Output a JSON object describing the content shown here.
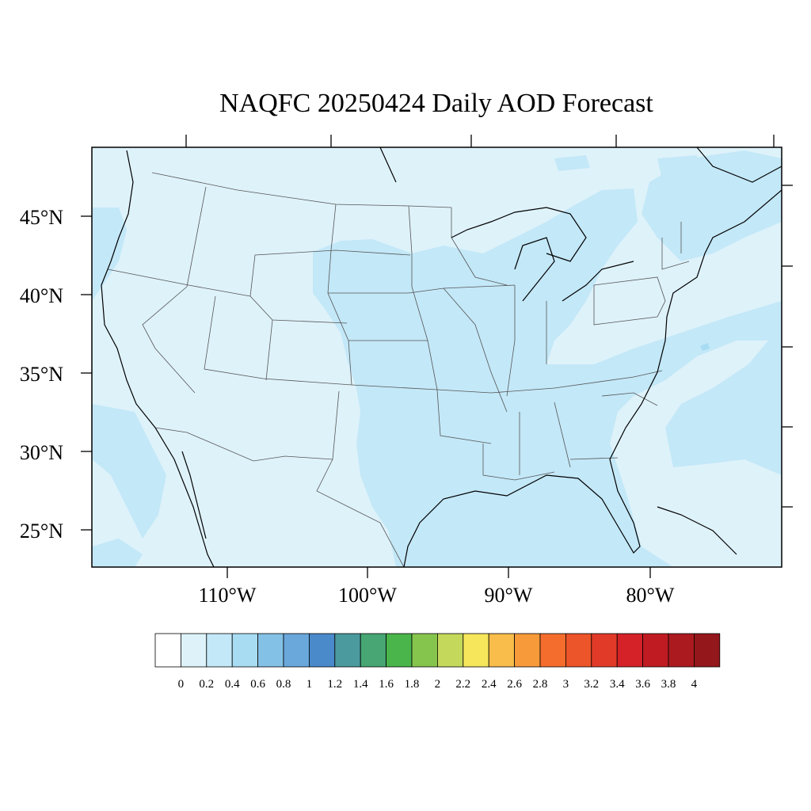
{
  "title": "NAQFC 20250424 Daily AOD Forecast",
  "colors": {
    "map_background": "#def2fa",
    "aod_0_2_0_4": "#c3e8f8",
    "aod_0_4_0_6": "#a8dcf3",
    "state_lines": "#555555",
    "coastline": "#000000"
  },
  "map": {
    "projection": "lat-lon",
    "lon_labels": [
      "110°W",
      "100°W",
      "90°W",
      "80°W"
    ],
    "lat_labels": [
      "45°N",
      "40°N",
      "35°N",
      "30°N",
      "25°N"
    ]
  },
  "colorbar": {
    "colors": [
      "#ffffff",
      "#def2fa",
      "#c3e8f8",
      "#a8dcf3",
      "#84c1e6",
      "#6aa7db",
      "#4a8acb",
      "#4b9a9e",
      "#47a673",
      "#4ab54b",
      "#86c54d",
      "#c4d95b",
      "#f6e65b",
      "#f8bd4a",
      "#f79a3a",
      "#f46d2c",
      "#ec5429",
      "#e23a28",
      "#d52128",
      "#c01b22",
      "#ab1a1f",
      "#94171b"
    ],
    "labels": [
      "0",
      "0.2",
      "0.4",
      "0.6",
      "0.8",
      "1",
      "1.2",
      "1.4",
      "1.6",
      "1.8",
      "2",
      "2.2",
      "2.4",
      "2.6",
      "2.8",
      "3",
      "3.2",
      "3.4",
      "3.6",
      "3.8",
      "4"
    ]
  }
}
